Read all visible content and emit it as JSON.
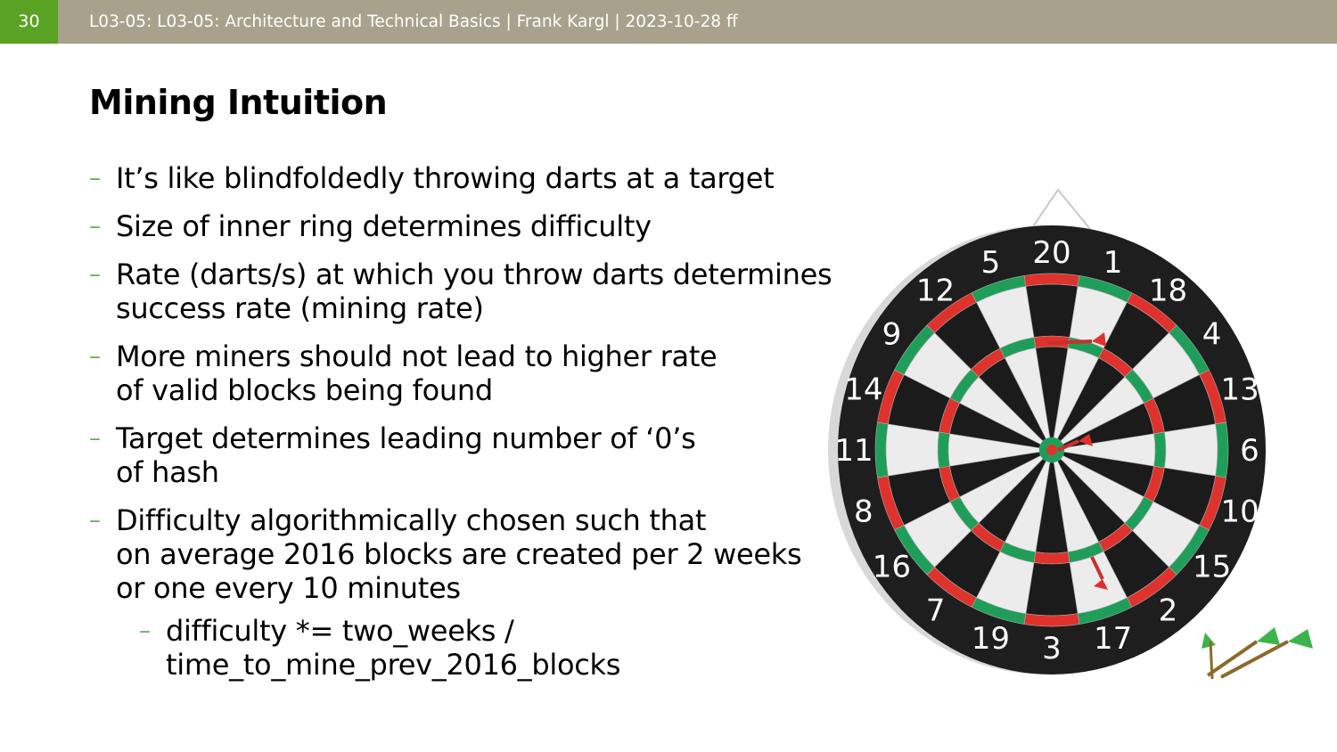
{
  "header": {
    "slide_number": "30",
    "footer_text": "L03-05: L03-05: Architecture and Technical Basics | Frank Kargl | 2023-10-28 ff"
  },
  "slide": {
    "title": "Mining Intuition",
    "bullets": [
      {
        "text": "It’s like blindfoldedly throwing darts at a target",
        "level": 1
      },
      {
        "text": "Size of inner ring determines difficulty",
        "level": 1
      },
      {
        "text": "Rate (darts/s) at which you throw darts determines\nsuccess rate (mining rate)",
        "level": 1
      },
      {
        "text": "More miners should not lead to higher rate\nof valid blocks being found",
        "level": 1
      },
      {
        "text": "Target determines leading number of ‘0’s\nof hash",
        "level": 1
      },
      {
        "text": "Difficulty algorithmically chosen such that\non average 2016 blocks are created per 2 weeks\nor one every 10 minutes",
        "level": 1
      },
      {
        "text": "difficulty *= two_weeks /\ntime_to_mine_prev_2016_blocks",
        "level": 2
      }
    ],
    "dash_glyph": "–"
  },
  "image": {
    "dartboard_numbers": [
      "20",
      "1",
      "18",
      "4",
      "13",
      "6",
      "10",
      "15",
      "2",
      "17",
      "3",
      "19",
      "7",
      "16",
      "8",
      "11",
      "14",
      "9",
      "12",
      "5"
    ],
    "colors": {
      "header_bar": "#a8a28d",
      "slide_number_bg": "#5aa224",
      "accent_dash": "#6ab04c",
      "board_red": "#e0322c",
      "board_green": "#1f9e5a"
    }
  }
}
